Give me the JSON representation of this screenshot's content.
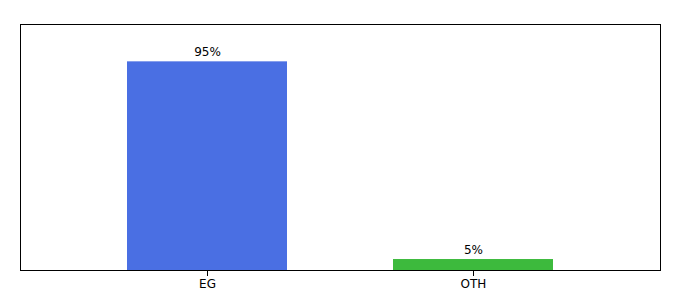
{
  "chart_data": {
    "type": "bar",
    "categories": [
      "EG",
      "OTH"
    ],
    "values": [
      95,
      5
    ],
    "value_labels": [
      "95%",
      "5%"
    ],
    "colors": [
      "#4a6fe3",
      "#3dba3d"
    ],
    "ylim": [
      0,
      112
    ],
    "data_labels": true,
    "tick_labels": "x",
    "grid": false
  }
}
